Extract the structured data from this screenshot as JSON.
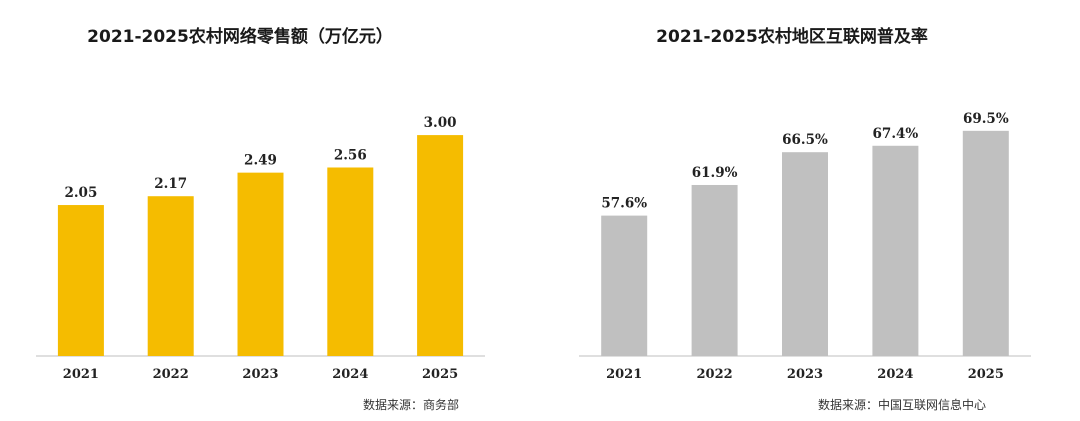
{
  "chart_data": [
    {
      "type": "bar",
      "title": "2021-2025农村网络零售额（万亿元）",
      "categories": [
        "2021",
        "2022",
        "2023",
        "2024",
        "2025"
      ],
      "values": [
        2.05,
        2.17,
        2.49,
        2.56,
        3.0
      ],
      "value_labels": [
        "2.05",
        "2.17",
        "2.49",
        "2.56",
        "3.00"
      ],
      "ylim": [
        0,
        3.3
      ],
      "grid": false,
      "bar_color": "#F5BC00",
      "source": "数据来源：商务部"
    },
    {
      "type": "bar",
      "title": "2021-2025农村地区互联网普及率",
      "categories": [
        "2021",
        "2022",
        "2023",
        "2024",
        "2025"
      ],
      "values": [
        57.6,
        61.9,
        66.5,
        67.4,
        69.5
      ],
      "value_labels": [
        "57.6%",
        "61.9%",
        "66.5%",
        "67.4%",
        "69.5%"
      ],
      "ylim": [
        37.9,
        72.0
      ],
      "grid": false,
      "bar_color": "#C0C0C0",
      "source": "数据来源：中国互联网信息中心"
    }
  ]
}
